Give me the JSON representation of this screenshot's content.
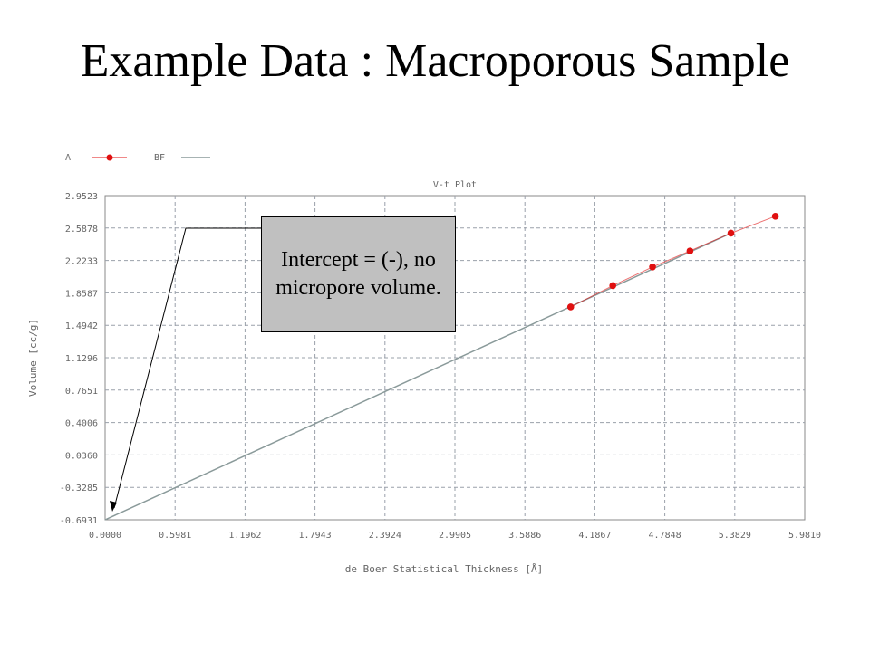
{
  "slide": {
    "title": "Example Data : Macroporous Sample"
  },
  "callout": {
    "text": "Intercept = (-), no micropore volume."
  },
  "colors": {
    "data_point": "#e01010",
    "fit_line": "#8a9a9a",
    "grid": "#9aa0aa",
    "axis_text": "#666666"
  },
  "chart_data": {
    "type": "scatter",
    "title": "V-t Plot",
    "xlabel": "de Boer Statistical Thickness [Å]",
    "ylabel": "Volume [cc/g]",
    "xlim": [
      0.0,
      5.981
    ],
    "ylim": [
      -0.6931,
      2.9523
    ],
    "x_ticks": [
      "0.0000",
      "0.5981",
      "1.1962",
      "1.7943",
      "2.3924",
      "2.9905",
      "3.5886",
      "4.1867",
      "4.7848",
      "5.3829",
      "5.9810"
    ],
    "y_ticks": [
      "-0.6931",
      "-0.3285",
      "0.0360",
      "0.4006",
      "0.7651",
      "1.1296",
      "1.4942",
      "1.8587",
      "2.2233",
      "2.5878",
      "2.9523"
    ],
    "grid": true,
    "legend_position": "top-left",
    "series": [
      {
        "name": "A",
        "kind": "points",
        "x": [
          3.98,
          4.34,
          4.68,
          5.0,
          5.35,
          5.73
        ],
        "y": [
          1.7,
          1.94,
          2.15,
          2.33,
          2.53,
          2.72
        ]
      },
      {
        "name": "BF",
        "kind": "line",
        "x": [
          0.0,
          5.35
        ],
        "y": [
          -0.6931,
          2.53
        ]
      }
    ]
  }
}
